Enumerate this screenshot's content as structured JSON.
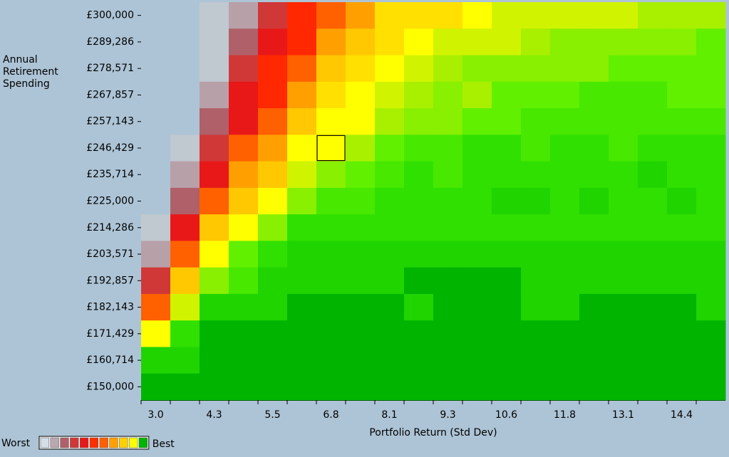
{
  "chart_data": {
    "type": "heatmap",
    "xlabel": "Portfolio Return (Std Dev)",
    "ylabel": "Annual Retirement Spending",
    "x_categories": [
      "3.0",
      null,
      "4.3",
      null,
      "5.5",
      null,
      "6.8",
      null,
      "8.1",
      null,
      "9.3",
      null,
      "10.6",
      null,
      "11.8",
      null,
      "13.1",
      null,
      "14.4",
      null
    ],
    "y_categories": [
      "£300,000",
      "£289,286",
      "£278,571",
      "£267,857",
      "£257,143",
      "£246,429",
      "£235,714",
      "£225,000",
      "£214,286",
      "£203,571",
      "£192,857",
      "£182,143",
      "£171,429",
      "£160,714",
      "£150,000"
    ],
    "colors": [
      "#c0c8d0",
      "#b8a0a8",
      "#b06068",
      "#d03838",
      "#e81818",
      "#ff2800",
      "#ff6000",
      "#ffa000",
      "#ffc800",
      "#ffe000",
      "#ffff00",
      "#d0f400",
      "#a8f000",
      "#88f000",
      "#60f000",
      "#48e800",
      "#30e000",
      "#20d400",
      "#10c400",
      "#00b400"
    ],
    "values": [
      [
        null,
        null,
        0,
        1,
        3,
        5,
        6,
        7,
        9,
        9,
        9,
        10,
        11,
        11,
        11,
        11,
        11,
        12,
        12,
        12
      ],
      [
        null,
        null,
        0,
        2,
        4,
        5,
        7,
        8,
        9,
        10,
        11,
        11,
        11,
        12,
        13,
        13,
        13,
        13,
        13,
        14
      ],
      [
        null,
        null,
        0,
        3,
        5,
        6,
        8,
        9,
        10,
        11,
        12,
        13,
        13,
        13,
        13,
        13,
        14,
        14,
        14,
        14
      ],
      [
        null,
        null,
        1,
        4,
        5,
        7,
        9,
        10,
        11,
        12,
        13,
        12,
        14,
        14,
        14,
        15,
        15,
        15,
        14,
        14
      ],
      [
        null,
        null,
        2,
        4,
        6,
        8,
        10,
        10,
        12,
        13,
        13,
        14,
        14,
        15,
        15,
        15,
        15,
        15,
        15,
        15
      ],
      [
        null,
        0,
        3,
        6,
        7,
        10,
        10,
        12,
        14,
        15,
        15,
        16,
        16,
        15,
        16,
        16,
        15,
        16,
        16,
        16
      ],
      [
        null,
        1,
        4,
        7,
        8,
        11,
        13,
        14,
        15,
        16,
        15,
        16,
        16,
        16,
        16,
        16,
        16,
        17,
        16,
        16
      ],
      [
        null,
        2,
        6,
        8,
        10,
        13,
        15,
        15,
        16,
        16,
        16,
        16,
        17,
        17,
        16,
        17,
        16,
        16,
        17,
        16
      ],
      [
        0,
        4,
        8,
        10,
        13,
        16,
        16,
        16,
        16,
        16,
        16,
        16,
        16,
        16,
        16,
        16,
        16,
        16,
        16,
        16
      ],
      [
        1,
        6,
        10,
        14,
        16,
        17,
        17,
        17,
        17,
        17,
        17,
        17,
        17,
        17,
        17,
        17,
        17,
        17,
        17,
        17
      ],
      [
        3,
        8,
        13,
        15,
        17,
        17,
        17,
        17,
        17,
        19,
        19,
        19,
        19,
        17,
        17,
        17,
        17,
        17,
        17,
        17
      ],
      [
        6,
        11,
        17,
        17,
        17,
        19,
        19,
        19,
        19,
        17,
        19,
        19,
        19,
        17,
        17,
        19,
        19,
        19,
        19,
        17
      ],
      [
        10,
        16,
        19,
        19,
        19,
        19,
        19,
        19,
        19,
        19,
        19,
        19,
        19,
        19,
        19,
        19,
        19,
        19,
        19,
        19
      ],
      [
        17,
        17,
        19,
        19,
        19,
        19,
        19,
        19,
        19,
        19,
        19,
        19,
        19,
        19,
        19,
        19,
        19,
        19,
        19,
        19
      ],
      [
        19,
        19,
        19,
        19,
        19,
        19,
        19,
        19,
        19,
        19,
        19,
        19,
        19,
        19,
        19,
        19,
        19,
        19,
        19,
        19
      ]
    ],
    "selected": {
      "row": 5,
      "column": 6
    },
    "legend": {
      "low": "Worst",
      "high": "Best",
      "colors": [
        "#d4dee6",
        "#b8a8b0",
        "#b06068",
        "#d03838",
        "#e81818",
        "#ff3000",
        "#ff6000",
        "#ffa000",
        "#ffd000",
        "#ffff00",
        "#00b400"
      ]
    }
  }
}
